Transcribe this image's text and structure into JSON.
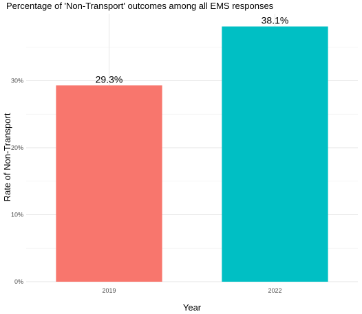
{
  "chart_data": {
    "type": "bar",
    "title": "Percentage of 'Non-Transport' outcomes among all EMS responses",
    "xlabel": "Year",
    "ylabel": "Rate of Non-Transport",
    "categories": [
      "2019",
      "2022"
    ],
    "values": [
      0.293,
      0.381
    ],
    "data_labels": [
      "29.3%",
      "38.1%"
    ],
    "ylim": [
      0,
      0.4
    ],
    "yticks": [
      0,
      0.1,
      0.2,
      0.3
    ],
    "ytick_labels": [
      "0%",
      "10%",
      "20%",
      "30%"
    ],
    "colors": [
      "#F8766D",
      "#00BFC4"
    ],
    "grid": true,
    "legend": "none"
  }
}
